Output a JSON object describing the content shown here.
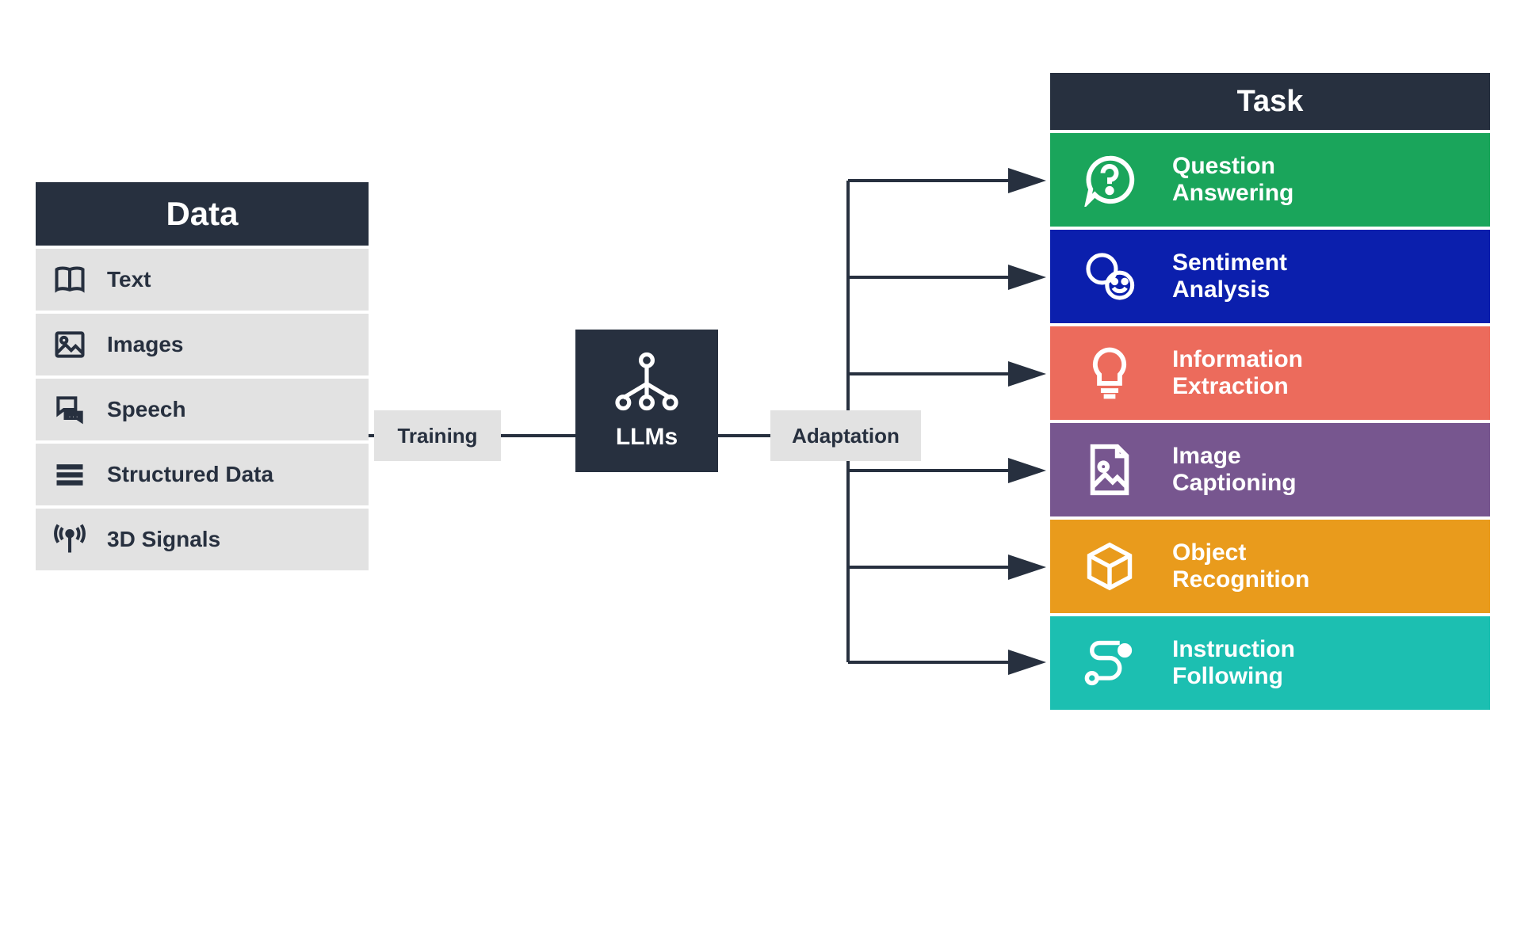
{
  "diagram": {
    "type": "flowchart",
    "background_color": "#ffffff",
    "dark_color": "#27303f",
    "light_box_color": "#e2e2e2",
    "connector_color": "#27303f",
    "connector_width": 4,
    "data_column": {
      "header": "Data",
      "header_bg": "#27303f",
      "header_color": "#ffffff",
      "row_bg": "#e2e2e2",
      "row_text_color": "#27303f",
      "items": [
        {
          "label": "Text",
          "icon": "book-icon"
        },
        {
          "label": "Images",
          "icon": "image-icon"
        },
        {
          "label": "Speech",
          "icon": "chat-icon"
        },
        {
          "label": "Structured Data",
          "icon": "rows-icon"
        },
        {
          "label": "3D Signals",
          "icon": "antenna-icon"
        }
      ]
    },
    "training_label": "Training",
    "center": {
      "label": "LLMs",
      "bg": "#27303f",
      "color": "#ffffff",
      "icon": "network-icon"
    },
    "adaptation_label": "Adaptation",
    "task_column": {
      "header": "Task",
      "header_bg": "#27303f",
      "header_color": "#ffffff",
      "items": [
        {
          "label": "Question\nAnswering",
          "bg": "#1aa55b",
          "icon": "question-icon"
        },
        {
          "label": "Sentiment\nAnalysis",
          "bg": "#0b1fad",
          "icon": "faces-icon"
        },
        {
          "label": "Information\nExtraction",
          "bg": "#ec6b5c",
          "icon": "bulb-icon"
        },
        {
          "label": "Image\nCaptioning",
          "bg": "#77568f",
          "icon": "image-file-icon"
        },
        {
          "label": "Object\nRecognition",
          "bg": "#e99b1c",
          "icon": "cube-icon"
        },
        {
          "label": "Instruction\nFollowing",
          "bg": "#1cbfb1",
          "icon": "route-icon"
        }
      ]
    }
  }
}
